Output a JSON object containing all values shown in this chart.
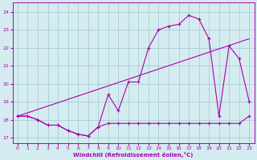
{
  "xlabel": "Windchill (Refroidissement éolien,°C)",
  "bg_color": "#d4ecf0",
  "line_color": "#aa00aa",
  "grid_color": "#a0c8d0",
  "hours": [
    0,
    1,
    2,
    3,
    4,
    5,
    6,
    7,
    8,
    9,
    10,
    11,
    12,
    13,
    14,
    15,
    16,
    17,
    18,
    19,
    20,
    21,
    22,
    23
  ],
  "line1_y": [
    18.2,
    18.2,
    18.0,
    17.7,
    17.7,
    17.4,
    17.2,
    17.1,
    17.6,
    19.4,
    18.5,
    20.1,
    20.1,
    22.0,
    23.0,
    23.2,
    23.3,
    23.8,
    23.6,
    22.5,
    18.2,
    22.1,
    21.4,
    19.0
  ],
  "line2_y": [
    18.2,
    18.2,
    18.0,
    17.7,
    17.7,
    17.4,
    17.2,
    17.1,
    17.6,
    17.8,
    17.8,
    17.8,
    17.8,
    17.8,
    17.8,
    17.8,
    17.8,
    17.8,
    17.8,
    17.8,
    17.8,
    17.8,
    17.8,
    18.2
  ],
  "line3_x": [
    0,
    23
  ],
  "line3_y": [
    18.2,
    22.5
  ],
  "ylim": [
    16.7,
    24.5
  ],
  "yticks": [
    17,
    18,
    19,
    20,
    21,
    22,
    23,
    24
  ],
  "xticks": [
    0,
    1,
    2,
    3,
    4,
    5,
    6,
    7,
    8,
    9,
    10,
    11,
    12,
    13,
    14,
    15,
    16,
    17,
    18,
    19,
    20,
    21,
    22,
    23
  ]
}
